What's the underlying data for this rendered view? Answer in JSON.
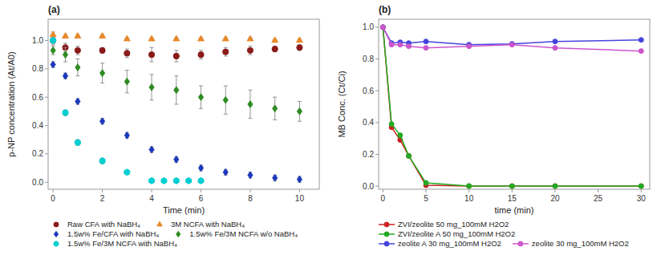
{
  "chart_data": [
    {
      "type": "scatter",
      "title": "(a)",
      "xlabel": "Time (min)",
      "ylabel": "p-NP concentration (At/A0)",
      "xlim": [
        -0.2,
        10.8
      ],
      "ylim": [
        -0.05,
        1.15
      ],
      "xticks": [
        0,
        2,
        4,
        6,
        8,
        10
      ],
      "yticks": [
        {
          "value": 0.0,
          "label": "0.0"
        },
        0.2,
        0.4,
        0.6,
        0.8,
        {
          "value": 1.0,
          "label": "1.0"
        }
      ],
      "grid": false,
      "legend": "bottom",
      "series": [
        {
          "name": "Raw CFA with NaBH₄",
          "color": "#8B1A1A",
          "marker": "circle",
          "x": [
            0,
            0.5,
            1,
            2,
            3,
            4,
            5,
            6,
            7,
            8,
            9,
            10
          ],
          "values": [
            1.0,
            0.95,
            0.93,
            0.93,
            0.91,
            0.9,
            0.89,
            0.9,
            0.92,
            0.93,
            0.94,
            0.95
          ],
          "yerr": [
            0.03,
            0.03,
            0.03,
            0.02,
            0.03,
            0.05,
            0.04,
            0.03,
            0.03,
            0.03,
            0.02,
            0.02
          ]
        },
        {
          "name": "3M NCFA with NaBH₄",
          "color": "#E8892B",
          "marker": "triangle",
          "x": [
            0,
            0.5,
            1,
            2,
            3,
            4,
            5,
            6,
            7,
            8,
            9,
            10
          ],
          "values": [
            1.04,
            1.03,
            1.03,
            1.03,
            1.01,
            1.01,
            1.01,
            1.01,
            1.01,
            1.01,
            1.0,
            1.0
          ],
          "yerr": [
            0.02,
            0.01,
            0.01,
            0.01,
            0.01,
            0.01,
            0.01,
            0.01,
            0.01,
            0.01,
            0.01,
            0.01
          ]
        },
        {
          "name": "1.5w% Fe/CFA with NaBH₄",
          "color": "#1C39BB",
          "marker": "diamond",
          "x": [
            0,
            0.5,
            1,
            2,
            3,
            4,
            5,
            6,
            7,
            8,
            9,
            10
          ],
          "values": [
            0.83,
            0.75,
            0.57,
            0.43,
            0.33,
            0.23,
            0.16,
            0.1,
            0.07,
            0.05,
            0.03,
            0.02
          ],
          "yerr": [
            0.02,
            0.02,
            0.02,
            0.02,
            0.02,
            0.02,
            0.02,
            0.02,
            0.02,
            0.02,
            0.02,
            0.02
          ]
        },
        {
          "name": "1.5w% Fe/3M NCFA w/o NaBH₄",
          "color": "#2E8B22",
          "marker": "diamond",
          "x": [
            0,
            0.5,
            1,
            2,
            3,
            4,
            5,
            6,
            7,
            8,
            9,
            10
          ],
          "values": [
            0.93,
            0.9,
            0.81,
            0.77,
            0.71,
            0.67,
            0.65,
            0.6,
            0.58,
            0.55,
            0.52,
            0.5
          ],
          "yerr": [
            0.03,
            0.05,
            0.06,
            0.07,
            0.08,
            0.09,
            0.1,
            0.08,
            0.1,
            0.1,
            0.08,
            0.07
          ]
        },
        {
          "name": "1.5w% Fe/3M NCFA with NaBH₄",
          "color": "#00CED1",
          "marker": "hexagon",
          "x": [
            0,
            0.5,
            1,
            2,
            3,
            4,
            4.5,
            5,
            5.5,
            6
          ],
          "values": [
            1.0,
            0.49,
            0.28,
            0.15,
            0.07,
            0.01,
            0.01,
            0.01,
            0.01,
            0.01
          ],
          "yerr": [
            0.02,
            0.02,
            0.02,
            0.02,
            0.01,
            0.005,
            0.005,
            0.005,
            0.005,
            0.005
          ]
        }
      ]
    },
    {
      "type": "line",
      "title": "(b)",
      "xlabel": "time (min)",
      "ylabel": "MB Conc. (Ct/Ci)",
      "xlim": [
        -0.5,
        31
      ],
      "ylim": [
        -0.02,
        1.05
      ],
      "xticks": [
        0,
        5,
        10,
        15,
        20,
        25,
        30
      ],
      "yticks": [
        {
          "value": 0.0,
          "label": "0.0"
        },
        0.2,
        0.4,
        0.6,
        0.8,
        {
          "value": 1.0,
          "label": "1.0"
        }
      ],
      "grid": false,
      "legend": "bottom",
      "marker": "circle",
      "line_style": "solid",
      "series": [
        {
          "name": "ZVI/zeolite 50 mg_100mM H2O2",
          "color": "#CC2222",
          "x": [
            0,
            1,
            2,
            3,
            5,
            10,
            15,
            20,
            30
          ],
          "values": [
            1.0,
            0.37,
            0.29,
            0.19,
            0.005,
            0.0,
            0.0,
            0.0,
            0.0
          ]
        },
        {
          "name": "ZVI/zeolite A 50 mg_100mM H2O2",
          "color": "#22AA22",
          "x": [
            0,
            1,
            2,
            3,
            5,
            10,
            15,
            20,
            30
          ],
          "values": [
            1.0,
            0.39,
            0.32,
            0.19,
            0.02,
            0.0,
            0.0,
            0.0,
            0.0
          ]
        },
        {
          "name": "zeolite A 30 mg_100mM H2O2",
          "color": "#4444DD",
          "x": [
            0,
            1,
            2,
            3,
            5,
            10,
            15,
            20,
            30
          ],
          "values": [
            1.0,
            0.9,
            0.905,
            0.9,
            0.91,
            0.89,
            0.895,
            0.91,
            0.92
          ]
        },
        {
          "name": "zeolite 30 mg_100mM H2O2",
          "color": "#CC55CC",
          "x": [
            0,
            1,
            2,
            3,
            5,
            10,
            15,
            20,
            30
          ],
          "values": [
            1.0,
            0.89,
            0.89,
            0.88,
            0.87,
            0.88,
            0.89,
            0.87,
            0.85
          ]
        }
      ]
    }
  ]
}
